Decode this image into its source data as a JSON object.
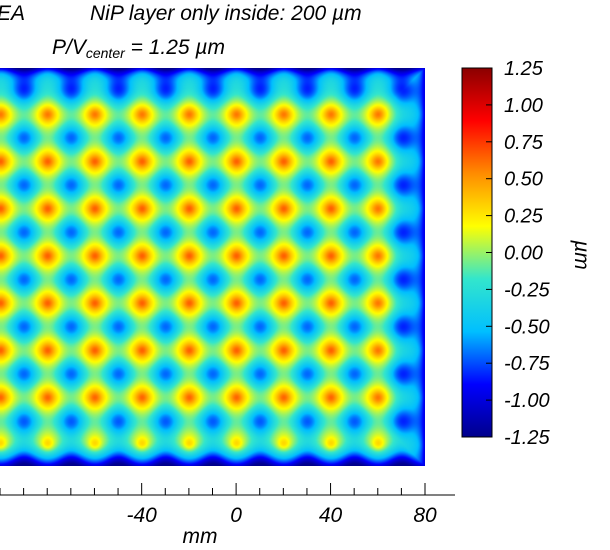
{
  "chart_data": {
    "type": "heatmap",
    "title_left": "EA",
    "title_main": "NiP layer only inside: 200 µm",
    "subtitle_prefix": "P/V",
    "subtitle_sub": "center",
    "subtitle_suffix": " = 1.25 µm",
    "xlabel": "mm",
    "x_ticks": [
      "-40",
      "0",
      "40",
      "80"
    ],
    "x_tick_values": [
      -40,
      0,
      40,
      80
    ],
    "xlim": [
      -100,
      80
    ],
    "colorbar_label": "µm",
    "colorbar_ticks": [
      "1.25",
      "1.00",
      "0.75",
      "0.50",
      "0.25",
      "0.00",
      "-0.25",
      "-0.50",
      "-0.75",
      "-1.00",
      "-1.25"
    ],
    "colorbar_range": [
      -1.25,
      1.25
    ],
    "colormap": [
      "#00008b",
      "#0000ff",
      "#00bfff",
      "#33e6cc",
      "#ffff00",
      "#ff8c00",
      "#ff0000",
      "#8b0000"
    ],
    "pattern": {
      "cell_pitch_mm": 20,
      "value_min": -1.25,
      "value_max": 1.25,
      "description_values": {
        "cell_center": -0.55,
        "edge": -1.15,
        "node_peak": 0.6
      }
    }
  }
}
